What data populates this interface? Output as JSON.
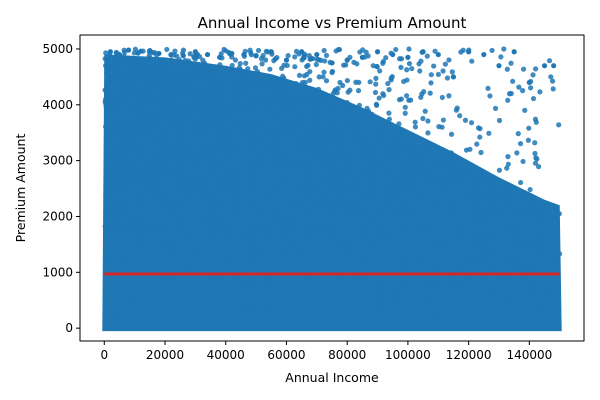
{
  "chart_data": {
    "type": "scatter",
    "title": "Annual Income vs Premium Amount",
    "xlabel": "Annual Income",
    "ylabel": "Premium Amount",
    "xlim": [
      -8000,
      158000
    ],
    "ylim": [
      -230,
      5250
    ],
    "x_ticks": [
      0,
      20000,
      40000,
      60000,
      80000,
      100000,
      120000,
      140000
    ],
    "x_tick_labels": [
      "0",
      "20000",
      "40000",
      "60000",
      "80000",
      "100000",
      "120000",
      "140000"
    ],
    "y_ticks": [
      0,
      1000,
      2000,
      3000,
      4000,
      5000
    ],
    "y_tick_labels": [
      "0",
      "1000",
      "2000",
      "3000",
      "4000",
      "5000"
    ],
    "grid": false,
    "series": [
      {
        "kind": "scatter",
        "color": "#1f77b4",
        "x_range": [
          0,
          150000
        ],
        "y_range": [
          0,
          5000
        ],
        "note_density": "dense everywhere below ~2000; sparse toward upper-right",
        "x": [
          2000,
          5000,
          8000,
          12000,
          15000,
          18000,
          22000,
          26000,
          30000,
          34000,
          38000,
          42000,
          46000,
          50000,
          55000,
          60000,
          65000,
          70000,
          75000,
          80000,
          85000,
          90000,
          95000,
          100000,
          105000,
          110000,
          115000,
          120000,
          125000,
          130000,
          135000,
          140000,
          145000,
          148000
        ],
        "y": [
          4950,
          4900,
          4980,
          4960,
          4970,
          4920,
          4900,
          4880,
          4950,
          4900,
          4850,
          4920,
          4900,
          4880,
          4950,
          4800,
          4950,
          4900,
          4750,
          4800,
          4850,
          4950,
          4900,
          4850,
          4950,
          4900,
          4500,
          4950,
          4900,
          4700,
          4950,
          4400,
          4700,
          4700
        ]
      },
      {
        "kind": "line",
        "color": "#d62728",
        "x": [
          0,
          150000
        ],
        "y": [
          970,
          970
        ]
      }
    ]
  }
}
